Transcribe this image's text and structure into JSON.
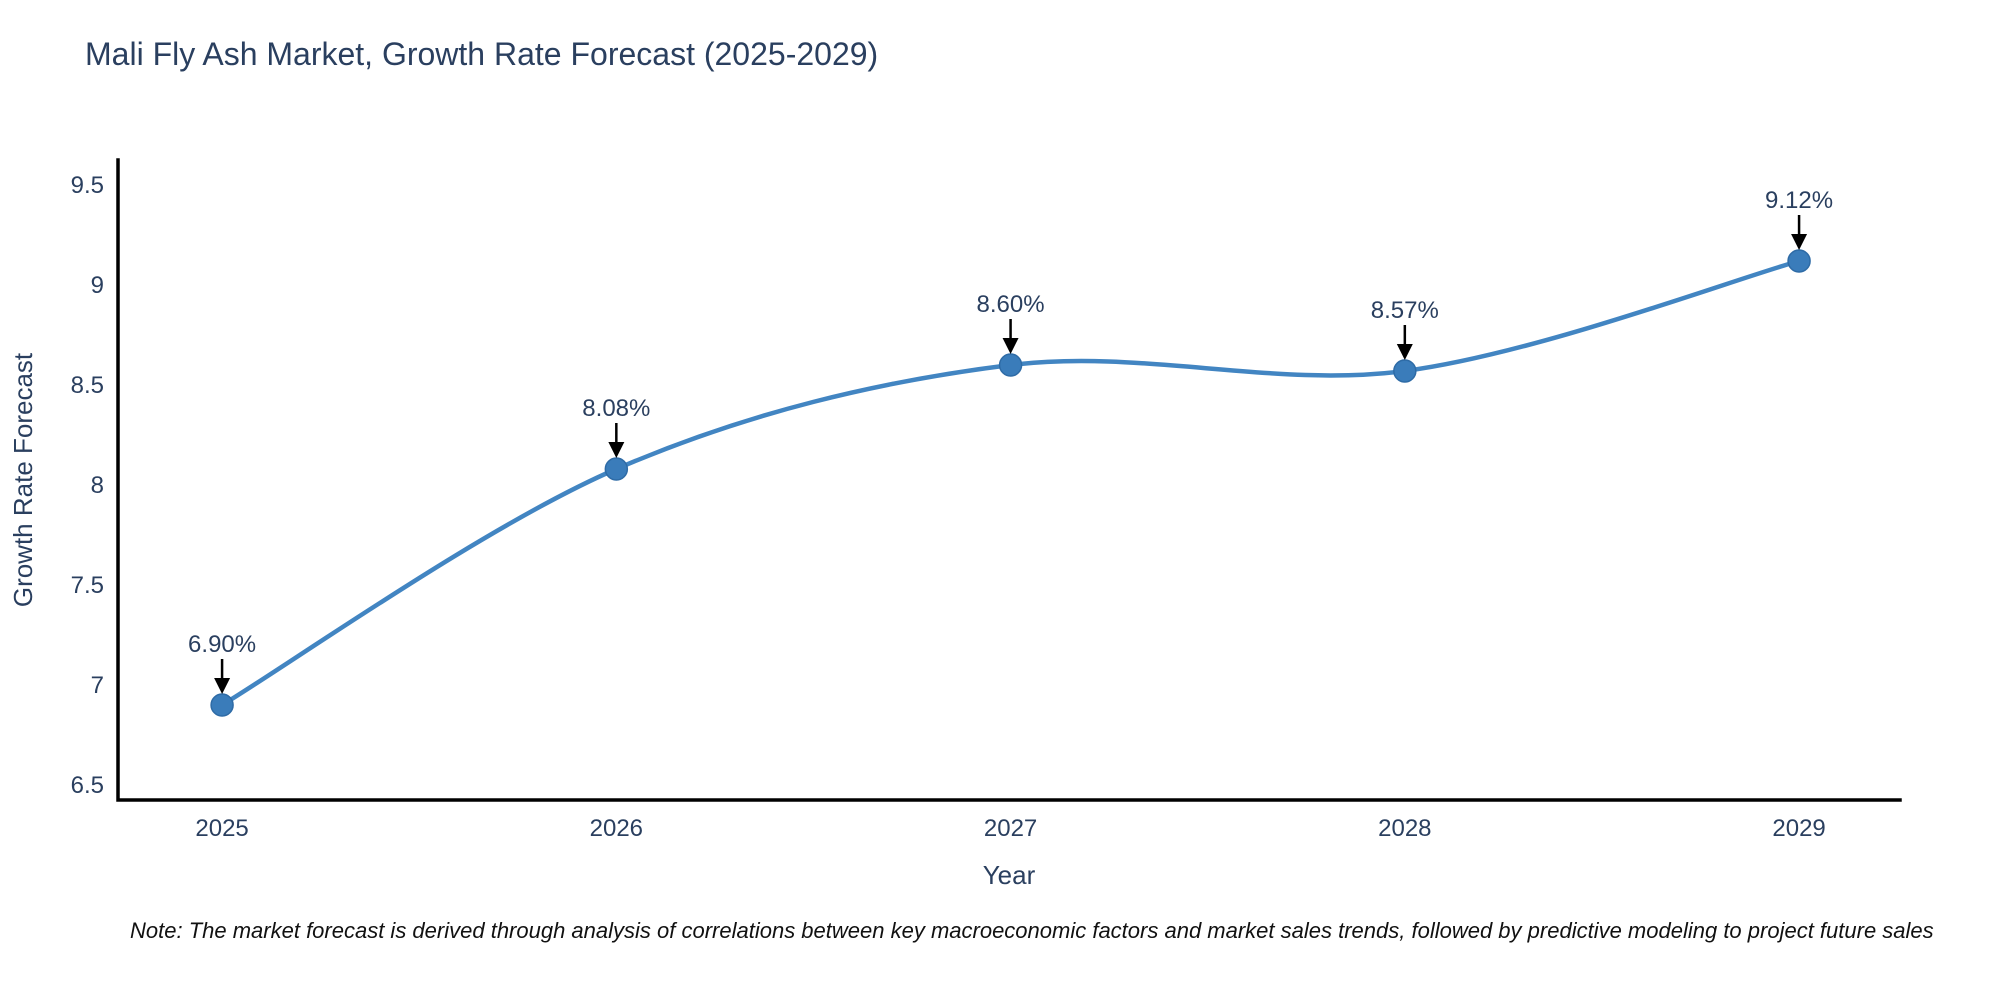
{
  "title": "Mali Fly Ash Market, Growth Rate Forecast (2025-2029)",
  "note": "Note: The market forecast is derived through analysis of correlations between key macroeconomic factors and market sales trends, followed by predictive modeling to project future sales",
  "chart_data": {
    "type": "line",
    "title": "Mali Fly Ash Market, Growth Rate Forecast (2025-2029)",
    "xlabel": "Year",
    "ylabel": "Growth Rate Forecast",
    "x": [
      2025,
      2026,
      2027,
      2028,
      2029
    ],
    "values": [
      6.9,
      8.08,
      8.6,
      8.57,
      9.12
    ],
    "point_labels": [
      "6.90%",
      "8.08%",
      "8.60%",
      "8.57%",
      "9.12%"
    ],
    "xtick_labels": [
      "2025",
      "2026",
      "2027",
      "2028",
      "2029"
    ],
    "yticks": [
      6.5,
      7,
      7.5,
      8,
      8.5,
      9,
      9.5
    ],
    "ytick_labels": [
      "6.5",
      "7",
      "7.5",
      "8",
      "8.5",
      "9",
      "9.5"
    ],
    "xlim": [
      2024.736,
      2029.256
    ],
    "ylim": [
      6.425,
      9.625
    ],
    "grid": false,
    "legend": "none",
    "line_shape": "spline",
    "annotations_have_arrows": true,
    "colors": {
      "line": "#4285c2",
      "marker": "#3a7cba",
      "marker_edge": "#2e6ba6",
      "axis": "#000000",
      "text": "#2a3f5f",
      "arrow": "#000000",
      "note_text": "#111111",
      "background": "#ffffff"
    }
  }
}
